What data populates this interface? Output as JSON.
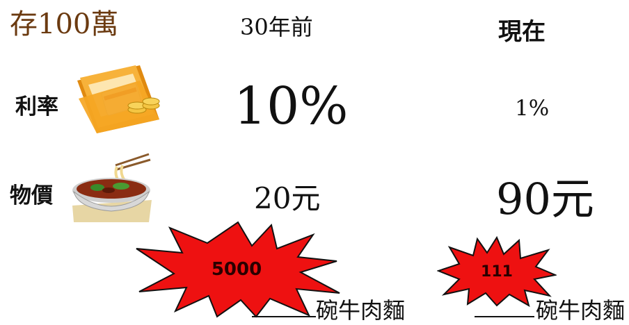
{
  "title": "存100萬",
  "columns": {
    "then": "30年前",
    "now": "現在"
  },
  "rows": {
    "rate": {
      "label": "利率",
      "then": "10%",
      "now": "1%"
    },
    "price": {
      "label": "物價",
      "then": "20元",
      "now": "90元"
    }
  },
  "results": {
    "then": {
      "count": "5000",
      "unit": "碗牛肉麵"
    },
    "now": {
      "count": "111",
      "unit": "碗牛肉麵"
    }
  },
  "icons": {
    "rate": "folder-coins-icon",
    "price": "noodle-bowl-icon"
  },
  "colors": {
    "title": "#6b3a10",
    "burst": "#ee1111",
    "folder": "#f5a623"
  }
}
